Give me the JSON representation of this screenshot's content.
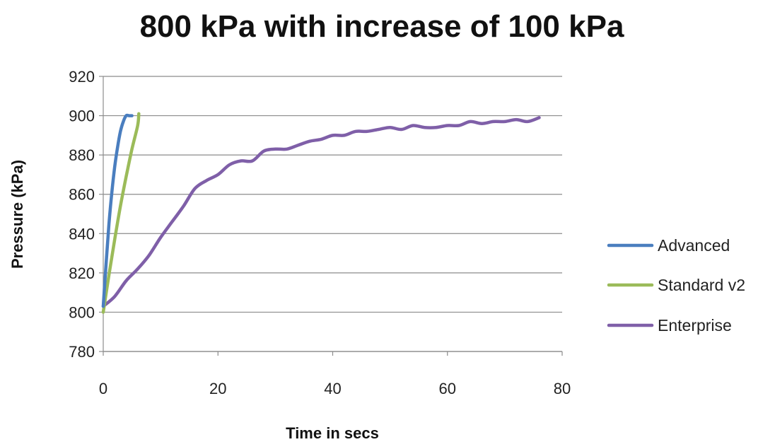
{
  "chart_data": {
    "type": "line",
    "title": "800 kPa with increase of 100 kPa",
    "xlabel": "Time in secs",
    "ylabel": "Pressure (kPa)",
    "xlim": [
      0,
      80
    ],
    "ylim": [
      780,
      920
    ],
    "xticks": [
      "0",
      "20",
      "40",
      "60",
      "80"
    ],
    "yticks": [
      "780",
      "800",
      "820",
      "840",
      "860",
      "880",
      "900",
      "920"
    ],
    "xtick_values": [
      0,
      20,
      40,
      60,
      80
    ],
    "ytick_values": [
      780,
      800,
      820,
      840,
      860,
      880,
      900,
      920
    ],
    "grid": "horizontal",
    "legend": "right",
    "series": [
      {
        "name": "Advanced",
        "color": "#4a7ebf",
        "x": [
          0,
          0.5,
          1,
          1.5,
          2,
          2.5,
          3,
          3.5,
          4,
          4.5,
          5
        ],
        "y": [
          803,
          825,
          845,
          861,
          874,
          884,
          892,
          897,
          900,
          900,
          900
        ]
      },
      {
        "name": "Standard v2",
        "color": "#9bbb59",
        "x": [
          0,
          1,
          2,
          3,
          4,
          5,
          6,
          6.2
        ],
        "y": [
          800,
          819,
          837,
          854,
          869,
          883,
          895,
          901
        ]
      },
      {
        "name": "Enterprise",
        "color": "#7f5fa8",
        "x": [
          0,
          2,
          4,
          6,
          8,
          10,
          12,
          14,
          16,
          18,
          20,
          22,
          24,
          26,
          28,
          30,
          32,
          34,
          36,
          38,
          40,
          42,
          44,
          46,
          48,
          50,
          52,
          54,
          56,
          58,
          60,
          62,
          64,
          66,
          68,
          70,
          72,
          74,
          76
        ],
        "y": [
          803,
          808,
          816,
          822,
          829,
          838,
          846,
          854,
          863,
          867,
          870,
          875,
          877,
          877,
          882,
          883,
          883,
          885,
          887,
          888,
          890,
          890,
          892,
          892,
          893,
          894,
          893,
          895,
          894,
          894,
          895,
          895,
          897,
          896,
          897,
          897,
          898,
          897,
          899
        ]
      }
    ]
  }
}
